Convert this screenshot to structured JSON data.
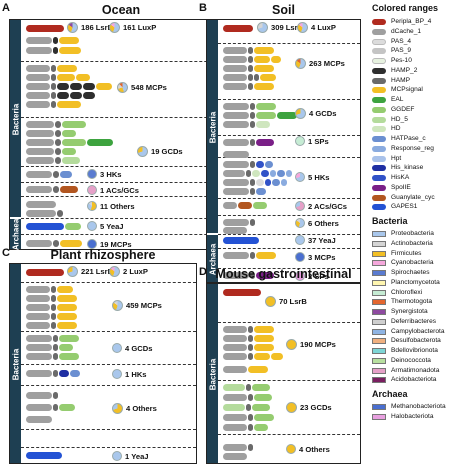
{
  "colors": {
    "Periplasmic_binding_protein_4": "#b02a1f",
    "dCache_1": "#9f9f9f",
    "PAS_4": "#dcdcdc",
    "PAS_9": "#c4c4c4",
    "Pas-10": "#e7f2e0",
    "HAMP_2": "#2e2e2e",
    "HAMP": "#6a6a6a",
    "MCPsignal": "#f2bf25",
    "EAL": "#3da33f",
    "GGDEF": "#95cc70",
    "HD_5": "#b4db9c",
    "HD": "#cfe6be",
    "HATPase_c": "#6b8fd1",
    "Response_reg": "#8aabdf",
    "Hpt": "#a9c2ea",
    "His_kinase": "#1f2fa3",
    "HisKA": "#3152c8",
    "SpoIIE": "#7a1f87",
    "Guanylate_cyc": "#b25620",
    "GAPES1": "#2352d4"
  },
  "taxonomy_colors": {
    "Proteobacteria": "#a9c7ec",
    "Actinobacteria": "#d5d5d5",
    "Firmicutes": "#f2bf25",
    "Cyanobacteria": "#f5a8dc",
    "Spirochaetes": "#5a7bd0",
    "Planctomycetota": "#fff6b0",
    "Chloroflexi": "#c6ecd4",
    "Thermotogota": "#e3662f",
    "Synergistota": "#8e4aa0",
    "Deferribacteres": "#cfcfcf",
    "Campylobacterota": "#8fb4e3",
    "Desulfobacterota": "#f0b080",
    "Bdellovibrionota": "#7fd6d6",
    "Deinococcota": "#b8e0a0",
    "Armatimonadota": "#e6a0c8",
    "Acidobacteriota": "#7a1f60",
    "Methanobacteriota": "#4a6fd0",
    "Halobacteriota": "#e8a0e0"
  },
  "panels": {
    "A": {
      "letter": "A",
      "title": "Ocean",
      "side": [
        "Bacteria",
        "Archaea"
      ]
    },
    "B": {
      "letter": "B",
      "title": "Soil",
      "side": [
        "Bacteria",
        "Archaea"
      ]
    },
    "C": {
      "letter": "C",
      "title": "Plant rhizosphere",
      "side": [
        "Bacteria"
      ]
    },
    "D": {
      "letter": "D",
      "title": "Mouse gastrointestinal tract",
      "side": [
        "Bacteria"
      ]
    }
  },
  "groups": {
    "A": [
      {
        "label": "186 LsrB",
        "second": "161 LuxP"
      },
      {
        "label": "548 MCPs"
      },
      {
        "label": "19 GCDs"
      },
      {
        "label": "3 HKs"
      },
      {
        "label": "1 ACs/GCs"
      },
      {
        "label": "11 Others"
      },
      {
        "label": "5 YeaJ"
      },
      {
        "label": "19 MCPs"
      }
    ],
    "B": [
      {
        "label": "309 LsrB",
        "second": "4 LuxP"
      },
      {
        "label": "263 MCPs"
      },
      {
        "label": "4 GCDs"
      },
      {
        "label": "1 SPs"
      },
      {
        "label": "5 HKs"
      },
      {
        "label": "2 ACs/GCs"
      },
      {
        "label": "6 Others"
      },
      {
        "label": "37 YeaJ"
      },
      {
        "label": "3 MCPs"
      },
      {
        "label": "2 SPs"
      }
    ],
    "C": [
      {
        "label": "221 LsrB",
        "second": "2 LuxP"
      },
      {
        "label": "459 MCPs"
      },
      {
        "label": "4 GCDs"
      },
      {
        "label": "1 HKs"
      },
      {
        "label": "4 Others"
      },
      {
        "label": "1 YeaJ"
      }
    ],
    "D": [
      {
        "label": "70 LsrB"
      },
      {
        "label": "190 MCPs"
      },
      {
        "label": "23 GCDs"
      },
      {
        "label": "4 Others"
      }
    ]
  },
  "legend": {
    "title": "Colored ranges",
    "items": [
      "Periplasmic_binding_protein_4",
      "dCache_1",
      "PAS_4",
      "PAS_9",
      "Pas-10",
      "HAMP_2",
      "HAMP",
      "MCPsignal",
      "EAL",
      "GGDEF",
      "HD_5",
      "HD",
      "HATPase_c",
      "Response_reg",
      "Hpt",
      "His_kinase",
      "HisKA",
      "SpoIIE",
      "Guanylate_cyc",
      "GAPES1"
    ],
    "labels": {
      "Periplasmic_binding_protein_4": "Peripla_BP_4",
      "dCache_1": "dCache_1",
      "PAS_4": "PAS_4",
      "PAS_9": "PAS_9",
      "Pas-10": "Pes-10",
      "HAMP_2": "HAMP_2",
      "HAMP": "HAMP",
      "MCPsignal": "MCPsignal",
      "EAL": "EAL",
      "GGDEF": "GGDEF",
      "HD_5": "HD_5",
      "HD": "HD",
      "HATPase_c": "HATPase_c",
      "Response_reg": "Response_reg",
      "Hpt": "Hpt",
      "His_kinase": "His_kinase",
      "HisKA": "HisKA",
      "SpoIIE": "SpoIIE",
      "Guanylate_cyc": "Guanylate_cyc",
      "GAPES1": "GAPES1"
    },
    "bacteria_title": "Bacteria",
    "bacteria": [
      "Proteobacteria",
      "Actinobacteria",
      "Firmicutes",
      "Cyanobacteria",
      "Spirochaetes",
      "Planctomycetota",
      "Chloroflexi",
      "Thermotogota",
      "Synergistota",
      "Deferribacteres",
      "Campylobacterota",
      "Desulfobacterota",
      "Bdellovibrionota",
      "Deinococcota",
      "Armatimonadota",
      "Acidobacteriota"
    ],
    "archaea_title": "Archaea",
    "archaea": [
      "Methanobacteriota",
      "Halobacteriota"
    ]
  }
}
